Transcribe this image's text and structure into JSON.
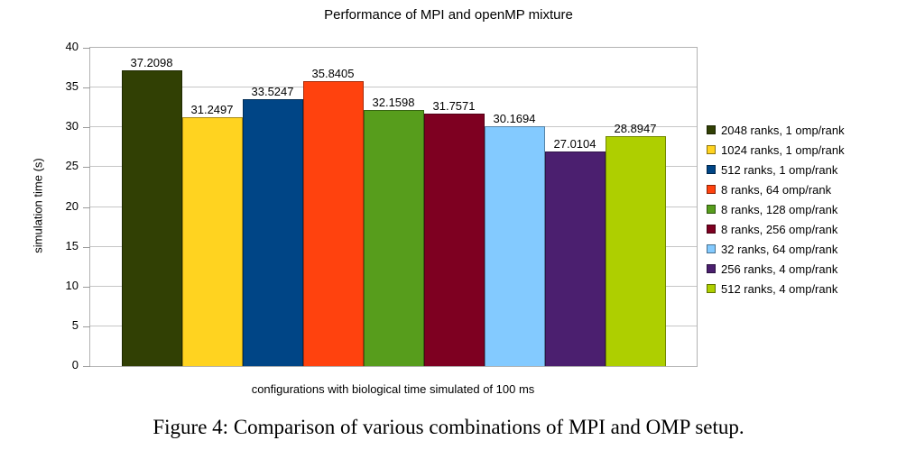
{
  "caption": "Figure 4: Comparison of various combinations of MPI and OMP setup.",
  "colors": {
    "grid": "#c6c6c6",
    "plot_border": "#b3b3b3",
    "text": "#000000",
    "background": "#ffffff"
  },
  "chart_data": {
    "type": "bar",
    "title": "Performance of MPI and openMP mixture",
    "xlabel": "configurations with biological time simulated of 100 ms",
    "ylabel": "simulation time (s)",
    "ylim": [
      0,
      40
    ],
    "ytick_step": 5,
    "yticks": [
      0,
      5,
      10,
      15,
      20,
      25,
      30,
      35,
      40
    ],
    "grid": true,
    "legend_position": "right",
    "categories": [
      "configurations with biological time simulated of 100 ms"
    ],
    "series": [
      {
        "name": "2048 ranks, 1 omp/rank",
        "value": 37.2098,
        "label": "37.2098",
        "color": "#314004"
      },
      {
        "name": "1024 ranks, 1 omp/rank",
        "value": 31.2497,
        "label": "31.2497",
        "color": "#ffd320"
      },
      {
        "name": "512 ranks, 1 omp/rank",
        "value": 33.5247,
        "label": "33.5247",
        "color": "#004586"
      },
      {
        "name": "8 ranks, 64 omp/rank",
        "value": 35.8405,
        "label": "35.8405",
        "color": "#ff420e"
      },
      {
        "name": "8 ranks, 128 omp/rank",
        "value": 32.1598,
        "label": "32.1598",
        "color": "#579d1c"
      },
      {
        "name": "8 ranks, 256 omp/rank",
        "value": 31.7571,
        "label": "31.7571",
        "color": "#7e0021"
      },
      {
        "name": "32 ranks, 64 omp/rank",
        "value": 30.1694,
        "label": "30.1694",
        "color": "#83caff"
      },
      {
        "name": "256 ranks, 4 omp/rank",
        "value": 27.0104,
        "label": "27.0104",
        "color": "#4b1f6f"
      },
      {
        "name": "512 ranks, 4 omp/rank",
        "value": 28.8947,
        "label": "28.8947",
        "color": "#aecf00"
      }
    ]
  }
}
